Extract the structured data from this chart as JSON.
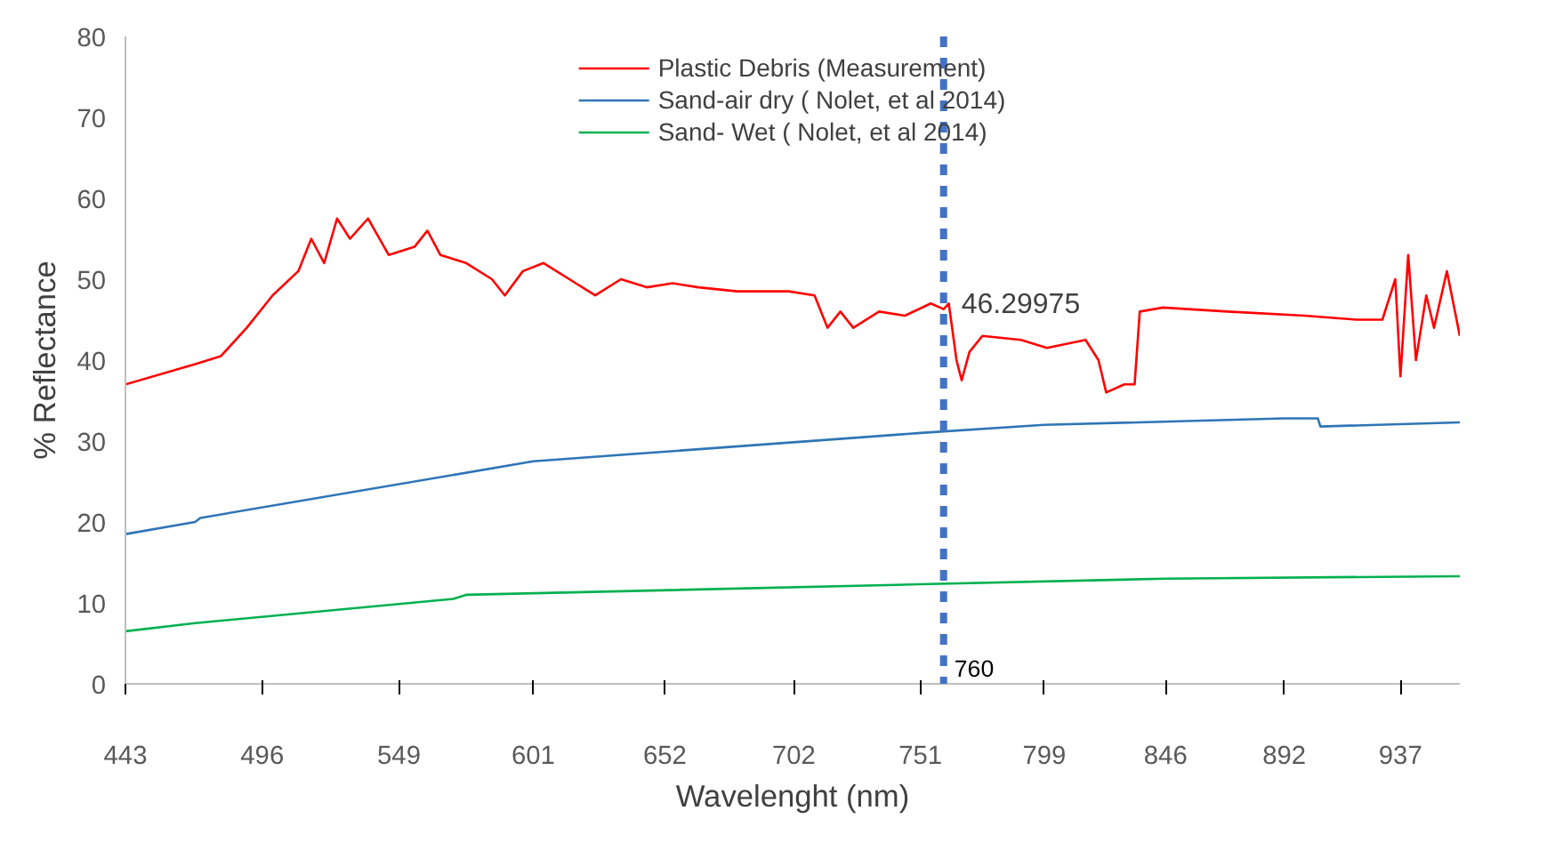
{
  "chart_data": {
    "type": "line",
    "xlabel": "Wavelenght (nm)",
    "ylabel": "% Reflectance",
    "xlim": [
      443,
      960
    ],
    "xticks": [
      443,
      496,
      549,
      601,
      652,
      702,
      751,
      799,
      846,
      892,
      937
    ],
    "ylim": [
      0,
      80
    ],
    "yticks": [
      0,
      10,
      20,
      30,
      40,
      50,
      60,
      70,
      80
    ],
    "grid": false,
    "legend": "top",
    "marker": "none",
    "line_style": "solid",
    "series": [
      {
        "name": "Plastic Debris (Measurement)",
        "color": "#ff0000",
        "x": [
          443,
          470,
          480,
          490,
          500,
          510,
          515,
          520,
          525,
          530,
          537,
          545,
          555,
          560,
          565,
          575,
          585,
          590,
          597,
          605,
          615,
          625,
          635,
          645,
          655,
          665,
          680,
          700,
          710,
          715,
          720,
          725,
          735,
          745,
          755,
          760,
          762,
          765,
          767,
          770,
          775,
          790,
          800,
          815,
          820,
          823,
          830,
          834,
          836,
          845,
          870,
          900,
          920,
          930,
          935,
          937,
          940,
          943,
          947,
          950,
          955,
          960
        ],
        "values": [
          37,
          39.5,
          40.5,
          44,
          48,
          51,
          55,
          52,
          57.5,
          55,
          57.5,
          53,
          54,
          56,
          53,
          52,
          50,
          48,
          51,
          52,
          50,
          48,
          50,
          49,
          49.5,
          49,
          48.5,
          48.5,
          48,
          44,
          46,
          44,
          46,
          45.5,
          47,
          46.29975,
          47,
          40,
          37.5,
          41,
          43,
          42.5,
          41.5,
          42.5,
          40,
          36,
          37,
          37,
          46,
          46.5,
          46,
          45.5,
          45,
          45,
          50,
          38,
          53,
          40,
          48,
          44,
          51,
          43
        ]
      },
      {
        "name": "Sand-air dry ( Nolet, et al 2014)",
        "color": "#2e75b6",
        "x": [
          443,
          470,
          472,
          601,
          751,
          799,
          892,
          905,
          906,
          960
        ],
        "values": [
          18.5,
          20,
          20.5,
          27.5,
          31,
          32,
          32.8,
          32.8,
          31.8,
          32.3
        ]
      },
      {
        "name": "Sand- Wet ( Nolet, et al 2014)",
        "color": "#00b050",
        "x": [
          443,
          470,
          570,
          575,
          751,
          846,
          960
        ],
        "values": [
          6.5,
          7.5,
          10.5,
          11,
          12.3,
          13,
          13.3
        ]
      }
    ],
    "ref_lines": [
      {
        "axis": "x",
        "value": 760,
        "label": "760",
        "color": "#4472c4",
        "line_style": "dashed"
      }
    ],
    "annotations": [
      {
        "text": "46.29975",
        "x": 760,
        "y": 46.29975
      }
    ]
  }
}
